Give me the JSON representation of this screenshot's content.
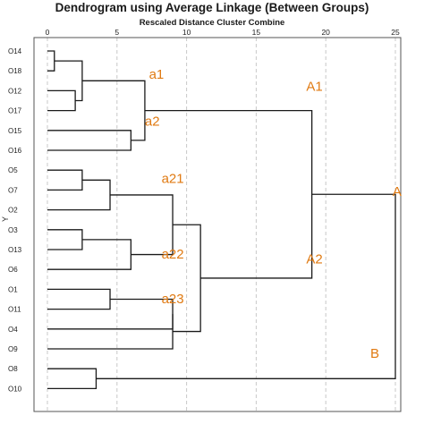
{
  "title": "Dendrogram using Average Linkage (Between Groups)",
  "subtitle": "Rescaled Distance Cluster Combine",
  "y_axis_label": "Y",
  "x_ticks": [
    "0",
    "5",
    "10",
    "15",
    "20",
    "25"
  ],
  "colors": {
    "annotation": "#e07a12",
    "lines": "#1a1a1a",
    "grid": "#c8c8c8",
    "frame": "#555555"
  },
  "chart_data": {
    "type": "dendrogram",
    "xlim": [
      0,
      25
    ],
    "leaves": [
      "O14",
      "O18",
      "O12",
      "O17",
      "O15",
      "O16",
      "O5",
      "O7",
      "O2",
      "O3",
      "O13",
      "O6",
      "O1",
      "O11",
      "O4",
      "O9",
      "O8",
      "O10"
    ],
    "merges": [
      {
        "id": "m1",
        "children": [
          "O14",
          "O18"
        ],
        "height": 0.5
      },
      {
        "id": "m2",
        "children": [
          "O12",
          "O17"
        ],
        "height": 2.0
      },
      {
        "id": "m3",
        "children": [
          "m1",
          "m2"
        ],
        "height": 2.5
      },
      {
        "id": "m4",
        "children": [
          "O15",
          "O16"
        ],
        "height": 6.0
      },
      {
        "id": "m5",
        "children": [
          "m3",
          "m4"
        ],
        "height": 7.0
      },
      {
        "id": "m6",
        "children": [
          "O5",
          "O7"
        ],
        "height": 2.5
      },
      {
        "id": "m7",
        "children": [
          "m6",
          "O2"
        ],
        "height": 4.5
      },
      {
        "id": "m8",
        "children": [
          "O3",
          "O13"
        ],
        "height": 2.5
      },
      {
        "id": "m9",
        "children": [
          "m8",
          "O6"
        ],
        "height": 6.0
      },
      {
        "id": "m10",
        "children": [
          "m7",
          "m9"
        ],
        "height": 9.0
      },
      {
        "id": "m11",
        "children": [
          "O1",
          "O11"
        ],
        "height": 4.5
      },
      {
        "id": "m12",
        "children": [
          "m11",
          "O4"
        ],
        "height": 9.0
      },
      {
        "id": "m13",
        "children": [
          "m12",
          "O9"
        ],
        "height": 9.0
      },
      {
        "id": "m14",
        "children": [
          "m10",
          "m13"
        ],
        "height": 11.0
      },
      {
        "id": "m15",
        "children": [
          "m5",
          "m14"
        ],
        "height": 19.0
      },
      {
        "id": "m16",
        "children": [
          "O8",
          "O10"
        ],
        "height": 3.5
      },
      {
        "id": "m17",
        "children": [
          "m15",
          "m16"
        ],
        "height": 25.0
      }
    ],
    "annotations": [
      {
        "text": "a1",
        "x": 7.3,
        "leaf_pos": 1.4
      },
      {
        "text": "a2",
        "x": 7.0,
        "leaf_pos": 3.75
      },
      {
        "text": "A1",
        "x": 18.6,
        "leaf_pos": 2.0
      },
      {
        "text": "A",
        "x": 24.8,
        "leaf_pos": 7.3
      },
      {
        "text": "a21",
        "x": 8.2,
        "leaf_pos": 6.65
      },
      {
        "text": "a22",
        "x": 8.2,
        "leaf_pos": 10.45
      },
      {
        "text": "A2",
        "x": 18.6,
        "leaf_pos": 10.7
      },
      {
        "text": "a23",
        "x": 8.2,
        "leaf_pos": 12.7
      },
      {
        "text": "B",
        "x": 23.2,
        "leaf_pos": 15.45
      }
    ]
  }
}
